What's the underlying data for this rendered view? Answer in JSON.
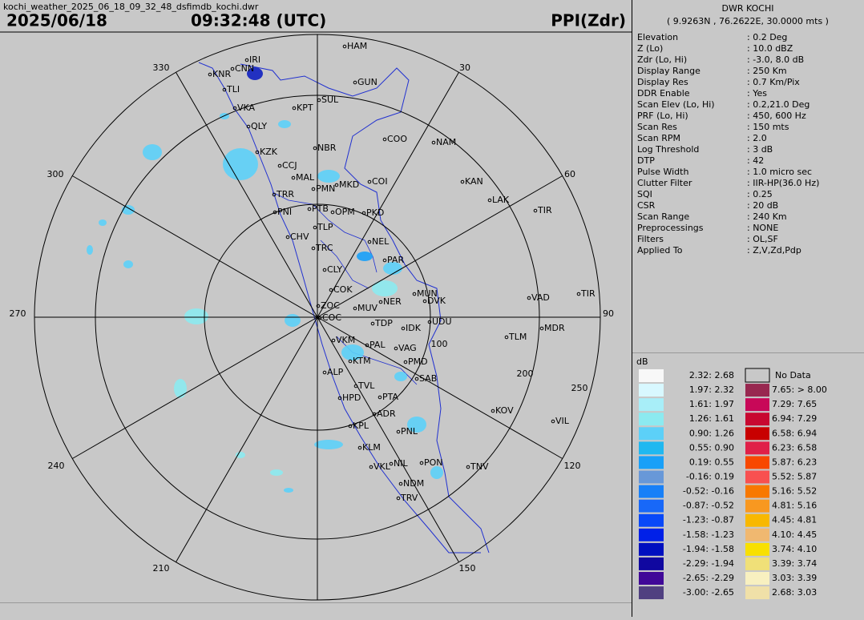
{
  "header": {
    "filename": "kochi_weather_2025_06_18_09_32_48_dsfimdb_kochi.dwr",
    "date": "2025/06/18",
    "time": "09:32:48 (UTC)",
    "product": "PPI(Zdr)"
  },
  "station": {
    "name": "DWR KOCHI",
    "coords": "( 9.9263N , 76.2622E, 30.0000 mts )"
  },
  "params": [
    [
      "Elevation",
      ": 0.2 Deg"
    ],
    [
      "Z (Lo)",
      ": 10.0 dBZ"
    ],
    [
      "Zdr (Lo, Hi)",
      ": -3.0, 8.0 dB"
    ],
    [
      "Display Range",
      ": 250 Km"
    ],
    [
      "Display Res",
      ": 0.7 Km/Pix"
    ],
    [
      "DDR Enable",
      ": Yes"
    ],
    [
      "Scan Elev (Lo, Hi)",
      ": 0.2,21.0 Deg"
    ],
    [
      "PRF (Lo, Hi)",
      ": 450, 600 Hz"
    ],
    [
      "Scan Res",
      ": 150 mts"
    ],
    [
      "Scan RPM",
      ": 2.0"
    ],
    [
      "Log Threshold",
      ": 3 dB"
    ],
    [
      "DTP",
      ": 42"
    ],
    [
      "Pulse Width",
      ": 1.0 micro sec"
    ],
    [
      "Clutter Filter",
      ": IIR-HP(36.0 Hz)"
    ],
    [
      "SQI",
      ": 0.25"
    ],
    [
      "CSR",
      ": 20 dB"
    ],
    [
      "Scan Range",
      ": 240 Km"
    ],
    [
      "Preprocessings",
      ": NONE"
    ],
    [
      "Filters",
      ": OL,SF"
    ],
    [
      "Applied To",
      ": Z,V,Zd,Pdp"
    ]
  ],
  "azimuth_labels": [
    "330",
    "30",
    "60",
    "90",
    "120",
    "150",
    "210",
    "240",
    "270",
    "300"
  ],
  "range_labels": [
    "100",
    "200",
    "250"
  ],
  "places": [
    "HAM",
    "IRI",
    "CNN",
    "KNR",
    "TLI",
    "GUN",
    "SUL",
    "KPT",
    "VKA",
    "QLY",
    "COO",
    "NAM",
    "NBR",
    "KZK",
    "CCJ",
    "MAL",
    "PMN",
    "MKD",
    "COI",
    "KAN",
    "LAK",
    "TRR",
    "TIR",
    "PNI",
    "PTB",
    "OPM",
    "PKD",
    "CHV",
    "TLP",
    "NEL",
    "TRC",
    "PAR",
    "CLY",
    "COK",
    "MUN",
    "DVK",
    "VAD",
    "TIR",
    "ZOC",
    "MUV",
    "NER",
    "COC",
    "UDU",
    "TDP",
    "IDK",
    "MDR",
    "TLM",
    "VKM",
    "PAL",
    "VAG",
    "KTM",
    "PMD",
    "ALP",
    "SAB",
    "TVL",
    "HPD",
    "PTA",
    "KOV",
    "ADR",
    "VIL",
    "KPL",
    "PNL",
    "KLM",
    "NIL",
    "VKL",
    "PON",
    "TNV",
    "NDM",
    "TRV"
  ],
  "legend": {
    "unit": "dB",
    "no_data": "No Data",
    "left": [
      {
        "label": "2.32: 2.68",
        "color": "#f8f8f8"
      },
      {
        "label": "1.97: 2.32",
        "color": "#d8f8ff"
      },
      {
        "label": "1.61: 1.97",
        "color": "#a8eef8"
      },
      {
        "label": "1.26: 1.61",
        "color": "#8ceaf0"
      },
      {
        "label": "0.90: 1.26",
        "color": "#5cd0f8"
      },
      {
        "label": "0.55: 0.90",
        "color": "#20b8f0"
      },
      {
        "label": "0.19: 0.55",
        "color": "#18a0f8"
      },
      {
        "label": "-0.16: 0.19",
        "color": "#6898d8"
      },
      {
        "label": "-0.52: -0.16",
        "color": "#1880f8"
      },
      {
        "label": "-0.87: -0.52",
        "color": "#1868f8"
      },
      {
        "label": "-1.23: -0.87",
        "color": "#0848f8"
      },
      {
        "label": "-1.58: -1.23",
        "color": "#0020e8"
      },
      {
        "label": "-1.94: -1.58",
        "color": "#0010c0"
      },
      {
        "label": "-2.29: -1.94",
        "color": "#1008a0"
      },
      {
        "label": "-2.65: -2.29",
        "color": "#400898"
      },
      {
        "label": "-3.00: -2.65",
        "color": "#504080"
      }
    ],
    "right": [
      {
        "label": "7.65: > 8.00",
        "color": "#982850"
      },
      {
        "label": "7.29: 7.65",
        "color": "#c80858"
      },
      {
        "label": "6.94: 7.29",
        "color": "#c80830"
      },
      {
        "label": "6.58: 6.94",
        "color": "#c80000"
      },
      {
        "label": "6.23: 6.58",
        "color": "#e02048"
      },
      {
        "label": "5.87: 6.23",
        "color": "#f84800"
      },
      {
        "label": "5.52: 5.87",
        "color": "#f85050"
      },
      {
        "label": "5.16: 5.52",
        "color": "#f87800"
      },
      {
        "label": "4.81: 5.16",
        "color": "#f89820"
      },
      {
        "label": "4.45: 4.81",
        "color": "#f8b800"
      },
      {
        "label": "4.10: 4.45",
        "color": "#f0b870"
      },
      {
        "label": "3.74: 4.10",
        "color": "#f8e000"
      },
      {
        "label": "3.39: 3.74",
        "color": "#f0e078"
      },
      {
        "label": "3.03: 3.39",
        "color": "#f8f0c0"
      },
      {
        "label": "2.68: 3.03",
        "color": "#f0e0a8"
      }
    ]
  }
}
